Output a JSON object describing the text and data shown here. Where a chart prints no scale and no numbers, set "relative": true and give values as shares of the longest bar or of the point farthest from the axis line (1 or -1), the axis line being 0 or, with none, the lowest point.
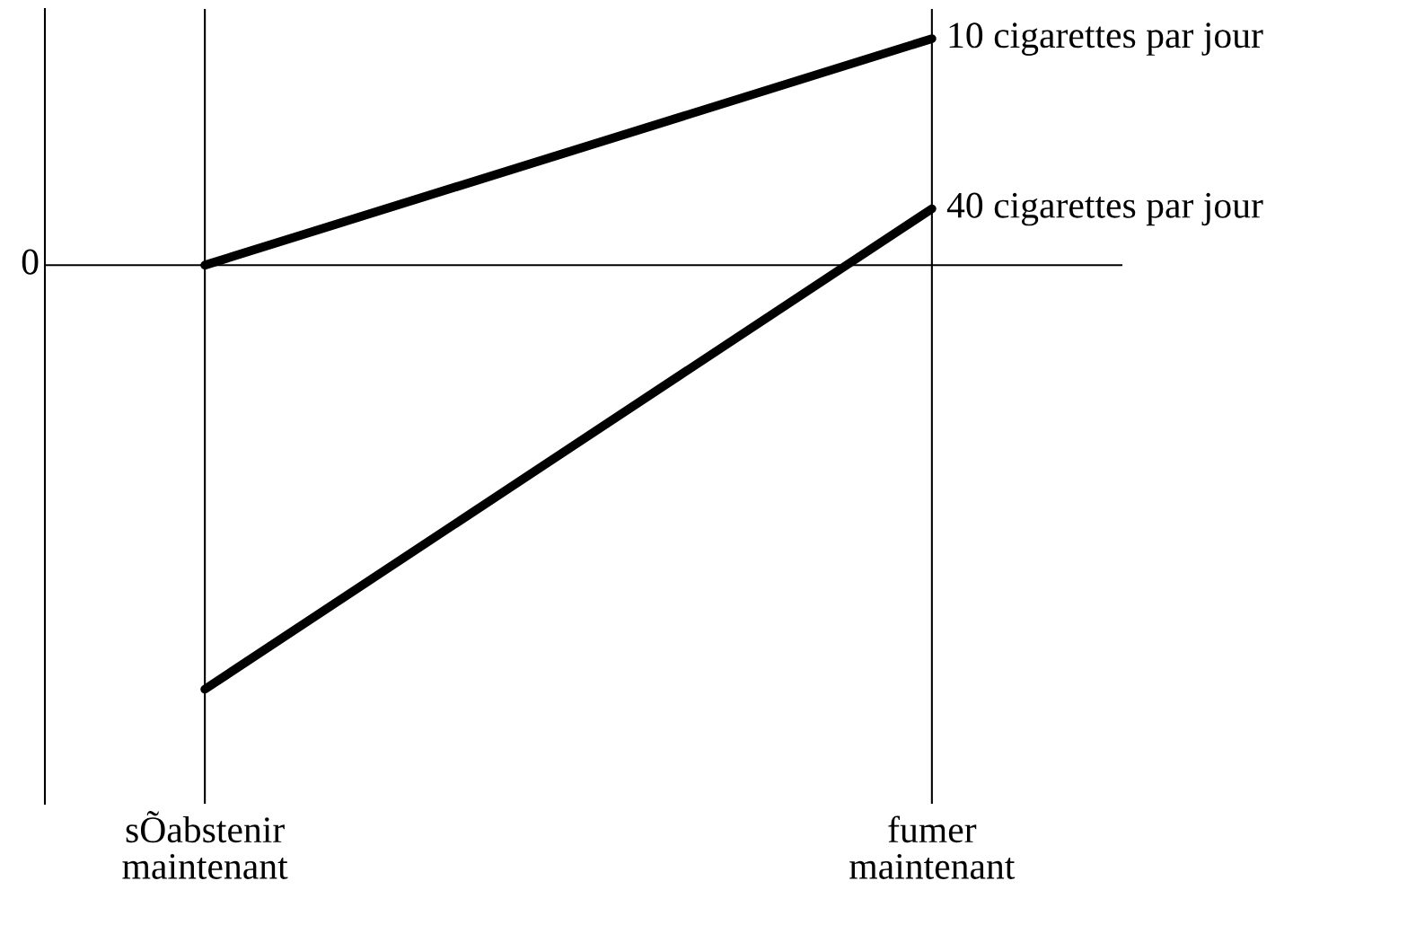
{
  "chart_data": {
    "type": "line",
    "relative": true,
    "categories": [
      "sÕabstenir\nmaintenant",
      "fumer\nmaintenant"
    ],
    "series": [
      {
        "name": "10 cigarettes par jour",
        "color": "#000000",
        "values": [
          0,
          0.534
        ]
      },
      {
        "name": "40 cigarettes par jour",
        "color": "#000000",
        "values": [
          -1,
          0.133
        ]
      }
    ],
    "ref_lines": [
      {
        "axis": "y",
        "value": 0,
        "label": "0",
        "color": "#000000"
      }
    ],
    "grid": "x",
    "legend": false,
    "marker": "none",
    "line_style": "solid"
  }
}
